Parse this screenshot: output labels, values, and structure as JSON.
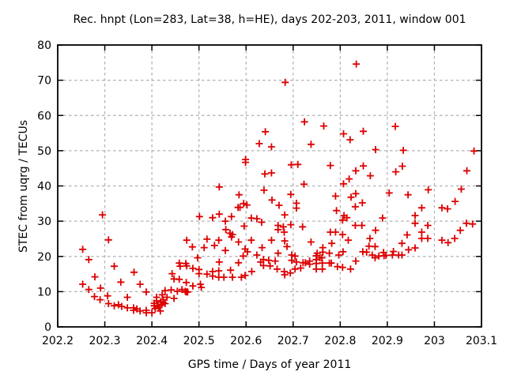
{
  "title": "Rec. hnpt (Lon=283, Lat=38, h=HE), days 202-203, 2011, window 001",
  "chart_data": {
    "type": "scatter",
    "title": "Rec. hnpt (Lon=283, Lat=38, h=HE), days 202-203, 2011, window 001",
    "xlabel": "GPS time / Days of year 2011",
    "ylabel": "STEC from uqrg / TECUs",
    "xlim": [
      202.2,
      203.1
    ],
    "ylim": [
      0,
      80
    ],
    "xticks": [
      202.2,
      202.3,
      202.4,
      202.5,
      202.6,
      202.7,
      202.8,
      202.9,
      203.0,
      203.1
    ],
    "xtick_labels": [
      "202.2",
      "202.3",
      "202.4",
      "202.5",
      "202.6",
      "202.7",
      "202.8",
      "202.9",
      "203",
      "203.1"
    ],
    "yticks": [
      0,
      10,
      20,
      30,
      40,
      50,
      60,
      70,
      80
    ],
    "ytick_labels": [
      "0",
      "10",
      "20",
      "30",
      "40",
      "50",
      "60",
      "70",
      "80"
    ],
    "grid": true,
    "legend_position": "none",
    "marker": "plus",
    "marker_color": "#dd0000",
    "series": [
      {
        "name": "STEC",
        "points": [
          [
            202.253,
            22.0
          ],
          [
            202.253,
            12.1
          ],
          [
            202.266,
            19.1
          ],
          [
            202.266,
            10.6
          ],
          [
            202.278,
            8.6
          ],
          [
            202.279,
            14.2
          ],
          [
            202.29,
            7.7
          ],
          [
            202.291,
            11.0
          ],
          [
            202.295,
            31.8
          ],
          [
            202.306,
            8.8
          ],
          [
            202.308,
            24.7
          ],
          [
            202.308,
            6.6
          ],
          [
            202.32,
            17.2
          ],
          [
            202.32,
            6.0
          ],
          [
            202.329,
            6.3
          ],
          [
            202.334,
            12.7
          ],
          [
            202.336,
            5.8
          ],
          [
            202.348,
            8.4
          ],
          [
            202.348,
            5.4
          ],
          [
            202.361,
            5.4
          ],
          [
            202.361,
            4.7
          ],
          [
            202.362,
            15.5
          ],
          [
            202.368,
            5.1
          ],
          [
            202.375,
            12.1
          ],
          [
            202.375,
            4.5
          ],
          [
            202.388,
            9.9
          ],
          [
            202.388,
            4.7
          ],
          [
            202.388,
            4.0
          ],
          [
            202.4,
            4.0
          ],
          [
            202.405,
            6.7
          ],
          [
            202.405,
            6.0
          ],
          [
            202.407,
            5.2
          ],
          [
            202.41,
            8.4
          ],
          [
            202.41,
            7.4
          ],
          [
            202.413,
            6.1
          ],
          [
            202.415,
            5.6
          ],
          [
            202.418,
            4.5
          ],
          [
            202.419,
            7.1
          ],
          [
            202.421,
            6.3
          ],
          [
            202.422,
            9.1
          ],
          [
            202.424,
            7.7
          ],
          [
            202.424,
            6.9
          ],
          [
            202.428,
            10.3
          ],
          [
            202.428,
            6.6
          ],
          [
            202.432,
            8.4
          ],
          [
            202.441,
            10.5
          ],
          [
            202.443,
            15.1
          ],
          [
            202.447,
            13.6
          ],
          [
            202.447,
            8.1
          ],
          [
            202.454,
            10.1
          ],
          [
            202.458,
            18.1
          ],
          [
            202.458,
            13.5
          ],
          [
            202.46,
            17.2
          ],
          [
            202.464,
            10.6
          ],
          [
            202.471,
            10.1
          ],
          [
            202.472,
            18.0
          ],
          [
            202.473,
            12.6
          ],
          [
            202.473,
            9.9
          ],
          [
            202.476,
            9.9
          ],
          [
            202.474,
            24.6
          ],
          [
            202.474,
            17.3
          ],
          [
            202.486,
            22.7
          ],
          [
            202.487,
            16.6
          ],
          [
            202.487,
            11.6
          ],
          [
            202.497,
            19.6
          ],
          [
            202.5,
            16.3
          ],
          [
            202.5,
            15.1
          ],
          [
            202.501,
            31.3
          ],
          [
            202.503,
            12.1
          ],
          [
            202.505,
            11.2
          ],
          [
            202.511,
            22.5
          ],
          [
            202.517,
            24.9
          ],
          [
            202.517,
            15.0
          ],
          [
            202.529,
            31.0
          ],
          [
            202.529,
            15.7
          ],
          [
            202.529,
            14.4
          ],
          [
            202.533,
            23.1
          ],
          [
            202.542,
            24.6
          ],
          [
            202.542,
            15.9
          ],
          [
            202.542,
            14.1
          ],
          [
            202.543,
            39.7
          ],
          [
            202.543,
            32.0
          ],
          [
            202.543,
            18.4
          ],
          [
            202.553,
            14.1
          ],
          [
            202.556,
            30.0
          ],
          [
            202.556,
            21.7
          ],
          [
            202.557,
            27.6
          ],
          [
            202.566,
            26.6
          ],
          [
            202.567,
            16.1
          ],
          [
            202.569,
            31.3
          ],
          [
            202.569,
            25.5
          ],
          [
            202.571,
            26.2
          ],
          [
            202.571,
            14.1
          ],
          [
            202.583,
            33.9
          ],
          [
            202.587,
            33.9
          ],
          [
            202.584,
            24.1
          ],
          [
            202.584,
            18.2
          ],
          [
            202.585,
            37.5
          ],
          [
            202.59,
            14.1
          ],
          [
            202.594,
            20.1
          ],
          [
            202.595,
            35.0
          ],
          [
            202.596,
            28.6
          ],
          [
            202.598,
            22.1
          ],
          [
            202.598,
            14.6
          ],
          [
            202.599,
            47.5
          ],
          [
            202.599,
            46.7
          ],
          [
            202.602,
            34.6
          ],
          [
            202.603,
            21.3
          ],
          [
            202.611,
            30.9
          ],
          [
            202.611,
            24.6
          ],
          [
            202.612,
            15.7
          ],
          [
            202.623,
            30.7
          ],
          [
            202.623,
            20.4
          ],
          [
            202.628,
            52.0
          ],
          [
            202.633,
            29.7
          ],
          [
            202.634,
            22.5
          ],
          [
            202.637,
            19.1
          ],
          [
            202.637,
            17.4
          ],
          [
            202.631,
            18.4
          ],
          [
            202.638,
            38.8
          ],
          [
            202.64,
            43.4
          ],
          [
            202.641,
            55.4
          ],
          [
            202.648,
            18.9
          ],
          [
            202.651,
            17.3
          ],
          [
            202.654,
            51.1
          ],
          [
            202.654,
            43.7
          ],
          [
            202.654,
            24.6
          ],
          [
            202.655,
            36.0
          ],
          [
            202.662,
            18.7
          ],
          [
            202.666,
            16.4
          ],
          [
            202.668,
            28.8
          ],
          [
            202.668,
            27.6
          ],
          [
            202.668,
            20.9
          ],
          [
            202.67,
            34.5
          ],
          [
            202.679,
            28.4
          ],
          [
            202.681,
            26.9
          ],
          [
            202.681,
            15.7
          ],
          [
            202.682,
            31.8
          ],
          [
            202.682,
            24.4
          ],
          [
            202.682,
            14.8
          ],
          [
            202.683,
            69.4
          ],
          [
            202.687,
            22.8
          ],
          [
            202.694,
            15.3
          ],
          [
            202.695,
            37.6
          ],
          [
            202.695,
            29.0
          ],
          [
            202.696,
            46.0
          ],
          [
            202.697,
            20.4
          ],
          [
            202.697,
            18.9
          ],
          [
            202.704,
            20.1
          ],
          [
            202.704,
            16.4
          ],
          [
            202.707,
            35.1
          ],
          [
            202.707,
            33.7
          ],
          [
            202.707,
            18.4
          ],
          [
            202.71,
            46.1
          ],
          [
            202.716,
            16.7
          ],
          [
            202.72,
            28.4
          ],
          [
            202.721,
            18.2
          ],
          [
            202.726,
            18.2
          ],
          [
            202.723,
            40.5
          ],
          [
            202.724,
            58.2
          ],
          [
            202.735,
            18.7
          ],
          [
            202.735,
            17.8
          ],
          [
            202.738,
            51.8
          ],
          [
            202.738,
            24.1
          ],
          [
            202.749,
            20.2
          ],
          [
            202.749,
            19.1
          ],
          [
            202.749,
            18.0
          ],
          [
            202.749,
            16.4
          ],
          [
            202.751,
            20.9
          ],
          [
            202.757,
            19.6
          ],
          [
            202.761,
            19.6
          ],
          [
            202.762,
            18.1
          ],
          [
            202.762,
            16.4
          ],
          [
            202.763,
            22.5
          ],
          [
            202.763,
            21.2
          ],
          [
            202.765,
            57.0
          ],
          [
            202.777,
            20.9
          ],
          [
            202.777,
            18.1
          ],
          [
            202.781,
            18.1
          ],
          [
            202.779,
            45.8
          ],
          [
            202.779,
            26.9
          ],
          [
            202.782,
            23.7
          ],
          [
            202.79,
            37.1
          ],
          [
            202.79,
            26.9
          ],
          [
            202.792,
            33.0
          ],
          [
            202.794,
            17.1
          ],
          [
            202.797,
            20.4
          ],
          [
            202.805,
            30.3
          ],
          [
            202.805,
            26.2
          ],
          [
            202.805,
            16.9
          ],
          [
            202.806,
            21.3
          ],
          [
            202.807,
            54.8
          ],
          [
            202.807,
            40.6
          ],
          [
            202.808,
            31.6
          ],
          [
            202.814,
            31.0
          ],
          [
            202.817,
            24.6
          ],
          [
            202.819,
            42.0
          ],
          [
            202.821,
            53.1
          ],
          [
            202.822,
            16.4
          ],
          [
            202.823,
            36.8
          ],
          [
            202.832,
            34.1
          ],
          [
            202.832,
            28.8
          ],
          [
            202.833,
            37.8
          ],
          [
            202.833,
            18.7
          ],
          [
            202.833,
            44.3
          ],
          [
            202.834,
            74.6
          ],
          [
            202.846,
            28.8
          ],
          [
            202.847,
            35.2
          ],
          [
            202.848,
            21.3
          ],
          [
            202.849,
            55.5
          ],
          [
            202.849,
            45.7
          ],
          [
            202.856,
            21.2
          ],
          [
            202.861,
            22.9
          ],
          [
            202.863,
            25.1
          ],
          [
            202.864,
            42.9
          ],
          [
            202.868,
            20.4
          ],
          [
            202.874,
            22.8
          ],
          [
            202.874,
            19.6
          ],
          [
            202.875,
            27.4
          ],
          [
            202.875,
            50.3
          ],
          [
            202.882,
            20.1
          ],
          [
            202.89,
            30.9
          ],
          [
            202.892,
            21.1
          ],
          [
            202.893,
            20.2
          ],
          [
            202.897,
            20.3
          ],
          [
            202.904,
            38.0
          ],
          [
            202.911,
            20.4
          ],
          [
            202.913,
            21.4
          ],
          [
            202.917,
            56.9
          ],
          [
            202.918,
            44.0
          ],
          [
            202.924,
            20.4
          ],
          [
            202.931,
            23.7
          ],
          [
            202.931,
            20.4
          ],
          [
            202.932,
            45.6
          ],
          [
            202.934,
            50.1
          ],
          [
            202.942,
            26.1
          ],
          [
            202.944,
            37.5
          ],
          [
            202.945,
            21.9
          ],
          [
            202.959,
            31.6
          ],
          [
            202.959,
            29.4
          ],
          [
            202.959,
            22.4
          ],
          [
            202.973,
            33.8
          ],
          [
            202.973,
            26.9
          ],
          [
            202.973,
            25.1
          ],
          [
            202.986,
            28.8
          ],
          [
            202.986,
            25.1
          ],
          [
            202.987,
            38.9
          ],
          [
            203.016,
            33.8
          ],
          [
            203.016,
            24.6
          ],
          [
            203.028,
            33.5
          ],
          [
            203.029,
            23.9
          ],
          [
            203.043,
            25.1
          ],
          [
            203.044,
            35.6
          ],
          [
            203.055,
            27.4
          ],
          [
            203.057,
            39.1
          ],
          [
            203.068,
            29.4
          ],
          [
            203.069,
            44.3
          ],
          [
            203.081,
            29.2
          ],
          [
            203.084,
            49.9
          ]
        ]
      }
    ]
  }
}
